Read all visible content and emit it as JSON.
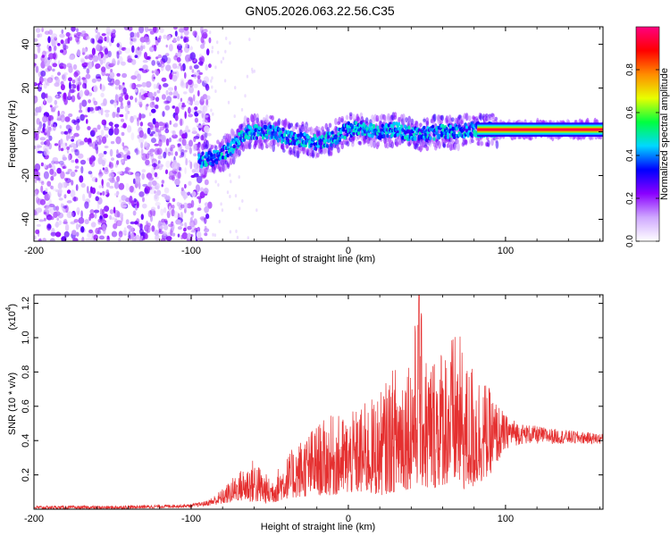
{
  "figure": {
    "title": "GN05.2026.063.22.56.C35"
  },
  "chart_data": [
    {
      "type": "heatmap",
      "title": "GN05.2026.063.22.56.C35",
      "xlabel": "Height of straight line (km)",
      "ylabel": "Frequency (Hz)",
      "xlim": [
        -200,
        162
      ],
      "ylim": [
        -50,
        48
      ],
      "x_ticks": [
        -200,
        -100,
        0,
        100
      ],
      "y_ticks": [
        -40,
        -20,
        0,
        20,
        40
      ],
      "colorbar": {
        "label": "Normalized spectral amplitude",
        "range": [
          0,
          1
        ],
        "ticks": [
          "0.0",
          "0.2",
          "0.4",
          "0.6",
          "0.8"
        ],
        "tick_values": [
          0,
          0.2,
          0.4,
          0.6,
          0.8
        ],
        "colors": [
          "#ffffff",
          "#cfa8ff",
          "#8a00ff",
          "#0000ff",
          "#00d8ff",
          "#00ff40",
          "#e8ff00",
          "#ff8c00",
          "#ff0000",
          "#ff0080"
        ]
      },
      "ridge": {
        "description_points_x": [
          -95,
          -85,
          -75,
          -65,
          -50,
          -35,
          -20,
          -10,
          0,
          10,
          20,
          30,
          40,
          50,
          60,
          70,
          80,
          90,
          100,
          120,
          140,
          162
        ],
        "frequency_hz": [
          -13,
          -12,
          -8,
          0,
          0,
          -3,
          -5,
          -3,
          1,
          2,
          0,
          1,
          -1,
          -1,
          0,
          0,
          1,
          1,
          1,
          1,
          1,
          1
        ]
      },
      "noise_region_x": [
        -200,
        -88
      ]
    },
    {
      "type": "line",
      "xlabel": "Height of straight line (km)",
      "ylabel": "SNR (10 * v/v)",
      "y_multiplier": "(x10",
      "y_multiplier_exp": "4",
      "xlim": [
        -200,
        162
      ],
      "ylim": [
        0,
        1.25
      ],
      "x_ticks": [
        -200,
        -100,
        0,
        100
      ],
      "y_ticks": [
        "0.2",
        "0.4",
        "0.6",
        "0.8",
        "1.0",
        "1.2"
      ],
      "y_tick_values": [
        0.2,
        0.4,
        0.6,
        0.8,
        1.0,
        1.2
      ],
      "series": [
        {
          "name": "SNR",
          "color": "#e53030",
          "envelope_x": [
            -200,
            -150,
            -100,
            -90,
            -80,
            -70,
            -60,
            -50,
            -40,
            -30,
            -20,
            -10,
            0,
            10,
            20,
            30,
            40,
            45,
            50,
            60,
            70,
            75,
            80,
            90,
            100,
            110,
            130,
            162
          ],
          "envelope_y": [
            0.02,
            0.02,
            0.03,
            0.05,
            0.12,
            0.22,
            0.3,
            0.18,
            0.3,
            0.42,
            0.5,
            0.55,
            0.55,
            0.62,
            0.68,
            0.85,
            0.95,
            1.25,
            0.9,
            0.98,
            1.05,
            0.85,
            0.88,
            0.7,
            0.55,
            0.5,
            0.47,
            0.44
          ],
          "floor_y": [
            0.0,
            0.0,
            0.01,
            0.02,
            0.03,
            0.05,
            0.04,
            0.03,
            0.06,
            0.07,
            0.08,
            0.08,
            0.09,
            0.09,
            0.08,
            0.1,
            0.12,
            0.15,
            0.1,
            0.14,
            0.13,
            0.1,
            0.12,
            0.2,
            0.35,
            0.38,
            0.38,
            0.38
          ],
          "peak": {
            "x": 45,
            "y": 1.25
          }
        }
      ]
    }
  ]
}
